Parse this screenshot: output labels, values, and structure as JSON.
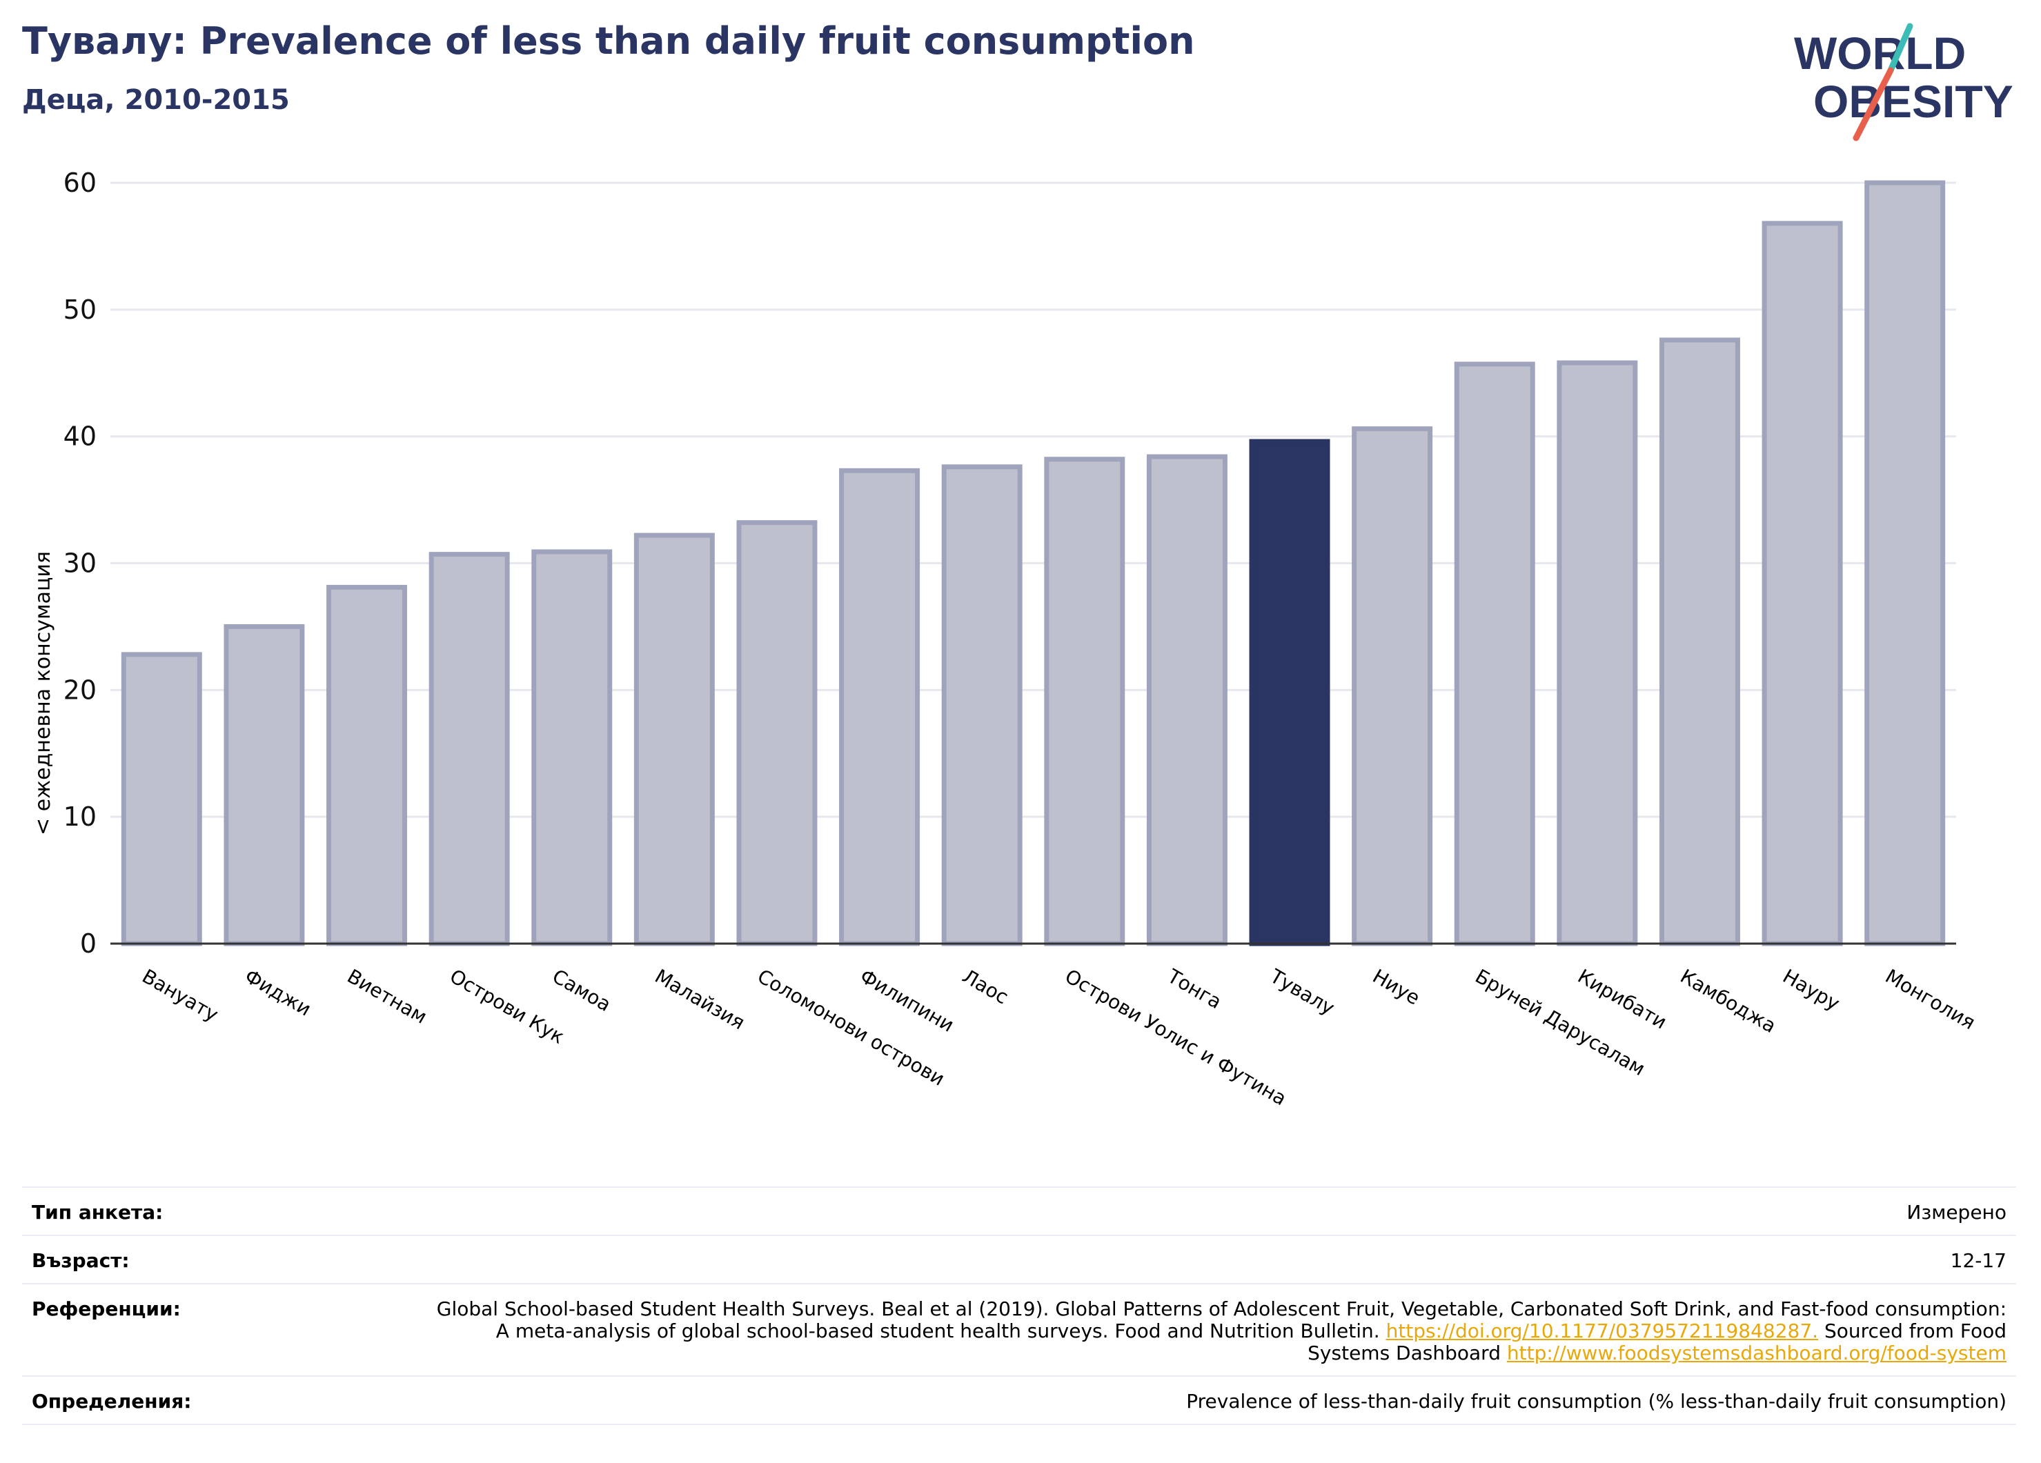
{
  "header": {
    "title": "Тувалу: Prevalence of less than daily fruit consumption",
    "subtitle": "Деца, 2010-2015"
  },
  "logo": {
    "line1": "WORLD",
    "line2": "OBESITY"
  },
  "colors": {
    "highlight": "#2a3563",
    "bar": "#bec1cd",
    "bar_edge": "#9fa4bc",
    "title": "#2a3563",
    "link": "#e8a80c"
  },
  "chart_data": {
    "type": "bar",
    "ylabel": "< ежедневна консумация",
    "ylim": [
      0,
      60
    ],
    "yticks": [
      0,
      10,
      20,
      30,
      40,
      50,
      60
    ],
    "grid": true,
    "highlight": "Тувалу",
    "categories": [
      "Вануату",
      "Фиджи",
      "Виетнам",
      "Острови Кук",
      "Самоа",
      "Малайзия",
      "Соломонови острови",
      "Филипини",
      "Лаос",
      "Острови Уолис и Футина",
      "Тонга",
      "Тувалу",
      "Ниуе",
      "Бруней Даруcалам",
      "Кирибати",
      "Камбоджа",
      "Науру",
      "Монголия"
    ],
    "values": [
      22.8,
      25.0,
      28.1,
      30.7,
      30.9,
      32.2,
      33.2,
      37.3,
      37.6,
      38.2,
      38.4,
      39.6,
      40.6,
      45.7,
      45.8,
      47.6,
      56.8,
      60.0
    ]
  },
  "footer": {
    "survey_label": "Тип анкета:",
    "survey_value": "Измерено",
    "age_label": "Възраст:",
    "age_value": "12-17",
    "refs_label": "Референции:",
    "refs_text": "Global School-based Student Health Surveys. Beal et al (2019). Global Patterns of Adolescent Fruit, Vegetable, Carbonated Soft Drink, and Fast-food consumption: A meta-analysis of global school-based student health surveys. Food and Nutrition Bulletin.",
    "refs_doi": "https://doi.org/10.1177/0379572119848287.",
    "refs_sourced": "Sourced from Food Systems Dashboard",
    "refs_url": "http://www.foodsystemsdashboard.org/food-system",
    "defs_label": "Определения:",
    "defs_value": "Prevalence of less-than-daily fruit consumption (% less-than-daily fruit consumption)"
  }
}
